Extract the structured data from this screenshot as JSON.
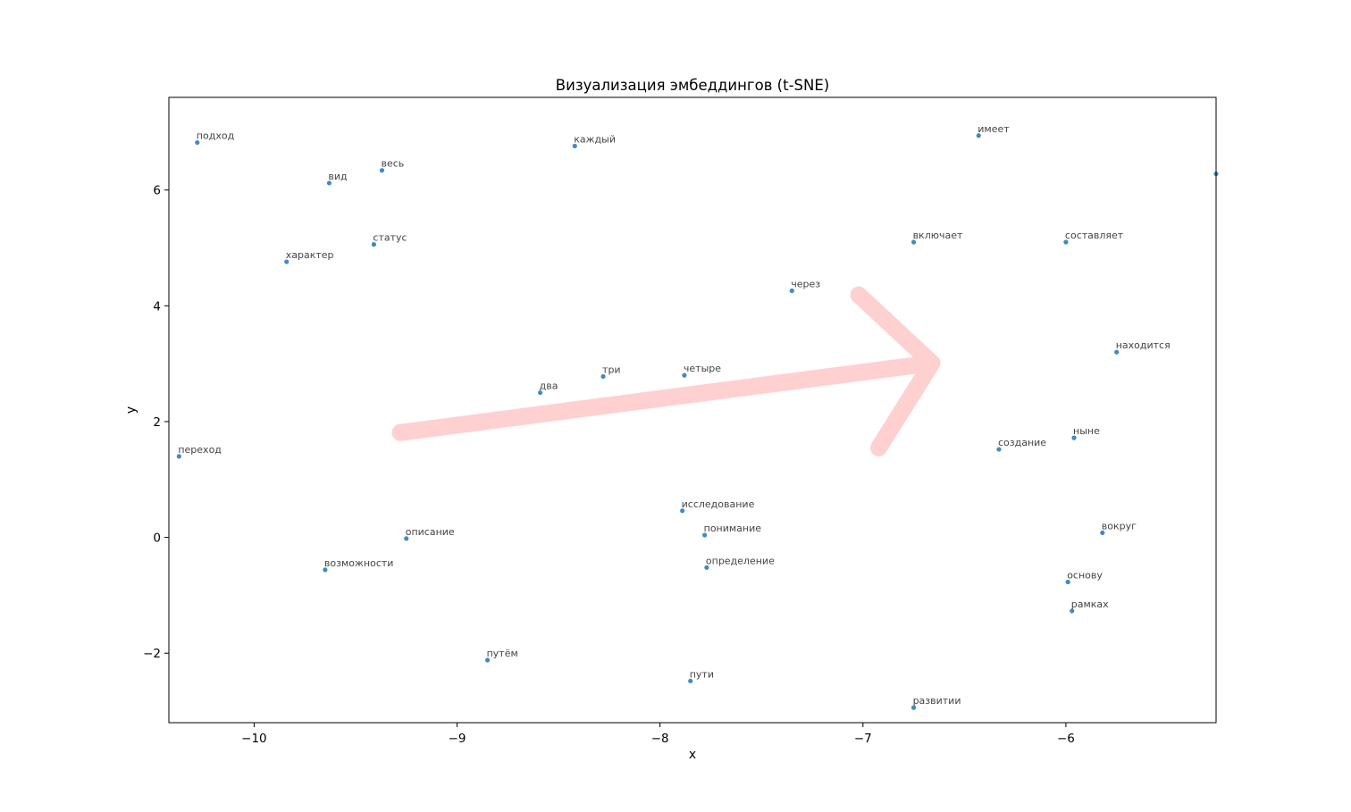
{
  "chart_data": {
    "type": "scatter",
    "title": "Визуализация эмбеддингов (t-SNE)",
    "xlabel": "x",
    "ylabel": "y",
    "xlim": [
      -10.42,
      -5.26
    ],
    "ylim": [
      -3.2,
      7.6
    ],
    "xticks": [
      -10,
      -9,
      -8,
      -7,
      -6
    ],
    "yticks": [
      -2,
      0,
      2,
      4,
      6
    ],
    "grid": false,
    "point_color": "#1f77b4",
    "points": [
      {
        "label": "подход",
        "x": -10.28,
        "y": 6.82
      },
      {
        "label": "вид",
        "x": -9.63,
        "y": 6.12
      },
      {
        "label": "весь",
        "x": -9.37,
        "y": 6.34
      },
      {
        "label": "каждый",
        "x": -8.42,
        "y": 6.76
      },
      {
        "label": "имеет",
        "x": -6.43,
        "y": 6.94
      },
      {
        "label": "статус",
        "x": -9.41,
        "y": 5.06
      },
      {
        "label": "характер",
        "x": -9.84,
        "y": 4.76
      },
      {
        "label": "включает",
        "x": -6.75,
        "y": 5.1
      },
      {
        "label": "составляет",
        "x": -6.0,
        "y": 5.1
      },
      {
        "label": "через",
        "x": -7.35,
        "y": 4.26
      },
      {
        "label": "находится",
        "x": -5.75,
        "y": 3.2
      },
      {
        "label": "три",
        "x": -8.28,
        "y": 2.78
      },
      {
        "label": "четыре",
        "x": -7.88,
        "y": 2.8
      },
      {
        "label": "два",
        "x": -8.59,
        "y": 2.5
      },
      {
        "label": "ныне",
        "x": -5.96,
        "y": 1.72
      },
      {
        "label": "создание",
        "x": -6.33,
        "y": 1.52
      },
      {
        "label": "переход",
        "x": -10.37,
        "y": 1.4
      },
      {
        "label": "исследование",
        "x": -7.89,
        "y": 0.46
      },
      {
        "label": "понимание",
        "x": -7.78,
        "y": 0.04
      },
      {
        "label": "описание",
        "x": -9.25,
        "y": -0.02
      },
      {
        "label": "вокруг",
        "x": -5.82,
        "y": 0.08
      },
      {
        "label": "возможности",
        "x": -9.65,
        "y": -0.56
      },
      {
        "label": "определение",
        "x": -7.77,
        "y": -0.52
      },
      {
        "label": "основу",
        "x": -5.99,
        "y": -0.77
      },
      {
        "label": "рамках",
        "x": -5.97,
        "y": -1.27
      },
      {
        "label": "путём",
        "x": -8.85,
        "y": -2.12
      },
      {
        "label": "пути",
        "x": -7.85,
        "y": -2.48
      },
      {
        "label": "развитии",
        "x": -6.75,
        "y": -2.94
      }
    ],
    "edge_points": [
      {
        "x": -5.26,
        "y": 6.28
      }
    ],
    "annotation": {
      "type": "arrow",
      "color": "#ffd0d0",
      "from": {
        "x": -9.28,
        "y": 1.81
      },
      "to": {
        "x": -6.66,
        "y": 3.01
      }
    }
  }
}
